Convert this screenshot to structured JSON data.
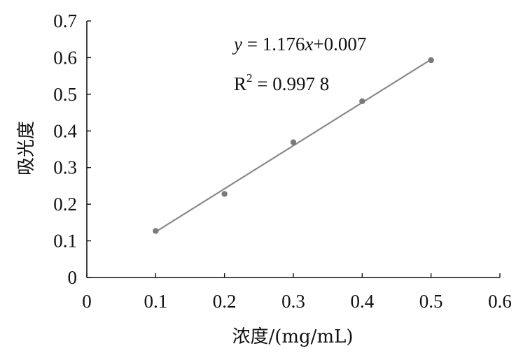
{
  "chart_data": {
    "type": "scatter",
    "xlabel": "浓度/(mg/mL)",
    "ylabel": "吸光度",
    "xlim": [
      0,
      0.6
    ],
    "ylim": [
      0,
      0.7
    ],
    "x_ticks": [
      "0",
      "0.1",
      "0.2",
      "0.3",
      "0.4",
      "0.5",
      "0.6"
    ],
    "y_ticks": [
      "0",
      "0.1",
      "0.2",
      "0.3",
      "0.4",
      "0.5",
      "0.6",
      "0.7"
    ],
    "points": [
      {
        "x": 0.1,
        "y": 0.127
      },
      {
        "x": 0.2,
        "y": 0.228
      },
      {
        "x": 0.3,
        "y": 0.369
      },
      {
        "x": 0.4,
        "y": 0.481
      },
      {
        "x": 0.5,
        "y": 0.593
      }
    ],
    "fit": {
      "slope": 1.176,
      "intercept": 0.007,
      "x_range": [
        0.1,
        0.5
      ]
    },
    "annotations": {
      "equation_y": "y",
      "equation_eq": " = 1.176",
      "equation_x": "x",
      "equation_rest": "+0.007",
      "r2_base": "R",
      "r2_sup": "2",
      "r2_value": " = 0.997 8"
    },
    "colors": {
      "axis": "#111111",
      "point": "#7a7a7a",
      "fit_line": "#8a8a8a"
    }
  }
}
